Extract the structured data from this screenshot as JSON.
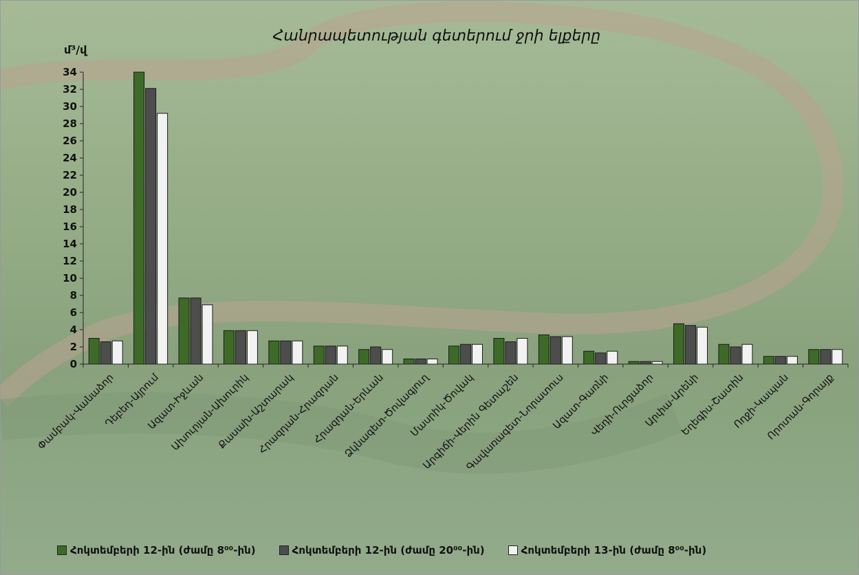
{
  "chart_data": {
    "type": "bar",
    "title": "Հանրապետության գետերում ջրի ելքերը",
    "ylabel": "մ³/վ",
    "xlabel": "",
    "ylim": [
      0,
      34
    ],
    "yticks": [
      0,
      2,
      4,
      6,
      8,
      10,
      12,
      14,
      16,
      18,
      20,
      22,
      24,
      26,
      28,
      30,
      32,
      34
    ],
    "grid": false,
    "legend_position": "bottom",
    "categories": [
      "Փամբակ-Վանաձոր",
      "Դեբեդ-Այրում",
      "Ազատ-Իջևան",
      "Ախուրյան-Ախուրիկ",
      "Քասախ-Աշտարակ",
      "Հրազդան-Հրազդան",
      "Հրազդան-Երևան",
      "Ձկնագետ-Ծովագյուղ",
      "Մասրիկ-Ծովակ",
      "Արգիճի-Վերին Գետաշեն",
      "Գավառագետ-Նորատուս",
      "Ազատ-Գառնի",
      "Վեդի-Ուրցաձոր",
      "Արփա-Արենի",
      "Եղեգիս-Շատին",
      "Ողջի-Կապան",
      "Որոտան-Գորայք"
    ],
    "series": [
      {
        "name": "Հոկտեմբերի 12-ին (ժամը 8⁰⁰-ին)",
        "color": "#3d6b27",
        "values": [
          3.0,
          34.0,
          7.7,
          3.9,
          2.7,
          2.1,
          1.7,
          0.6,
          2.1,
          3.0,
          3.4,
          1.5,
          0.3,
          4.7,
          2.3,
          0.9,
          1.7
        ]
      },
      {
        "name": "Հոկտեմբերի 12-ին (ժամը 20⁰⁰-ին)",
        "color": "#4d4d4d",
        "values": [
          2.6,
          32.1,
          7.7,
          3.9,
          2.7,
          2.1,
          2.0,
          0.6,
          2.3,
          2.6,
          3.2,
          1.3,
          0.3,
          4.5,
          2.0,
          0.9,
          1.7
        ]
      },
      {
        "name": "Հոկտեմբերի 13-ին (ժամը 8⁰⁰-ին)",
        "color": "#f2f2f2",
        "values": [
          2.7,
          29.2,
          6.9,
          3.9,
          2.7,
          2.1,
          1.7,
          0.6,
          2.3,
          3.0,
          3.2,
          1.5,
          0.3,
          4.3,
          2.3,
          0.9,
          1.7
        ]
      }
    ]
  }
}
